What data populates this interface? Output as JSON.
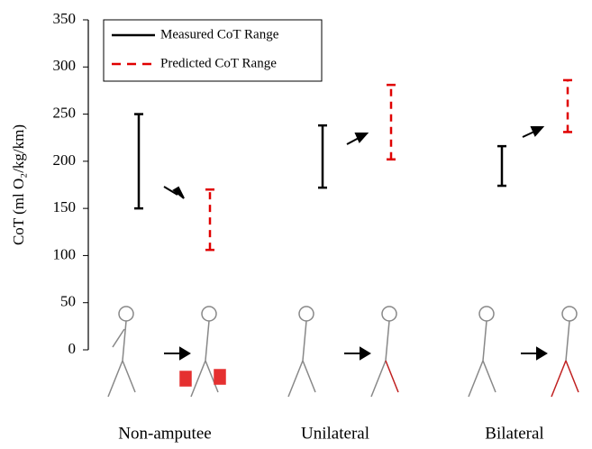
{
  "chart_data": {
    "type": "range",
    "y_label": "CoT (ml O₂/kg/km)",
    "categories": [
      "Non-amputee",
      "Unilateral",
      "Bilateral"
    ],
    "series": [
      {
        "name": "Measured CoT Range",
        "color": "#000000",
        "dashed": false,
        "low": [
          150,
          172,
          174
        ],
        "high": [
          250,
          238,
          216
        ]
      },
      {
        "name": "Predicted CoT Range",
        "color": "#e00000",
        "dashed": true,
        "low": [
          106,
          202,
          231
        ],
        "high": [
          170,
          281,
          286
        ]
      }
    ],
    "ylim": [
      0,
      350
    ],
    "yticks": [
      0,
      50,
      100,
      150,
      200,
      250,
      300,
      350
    ],
    "grid": false,
    "legend": "upper left"
  }
}
